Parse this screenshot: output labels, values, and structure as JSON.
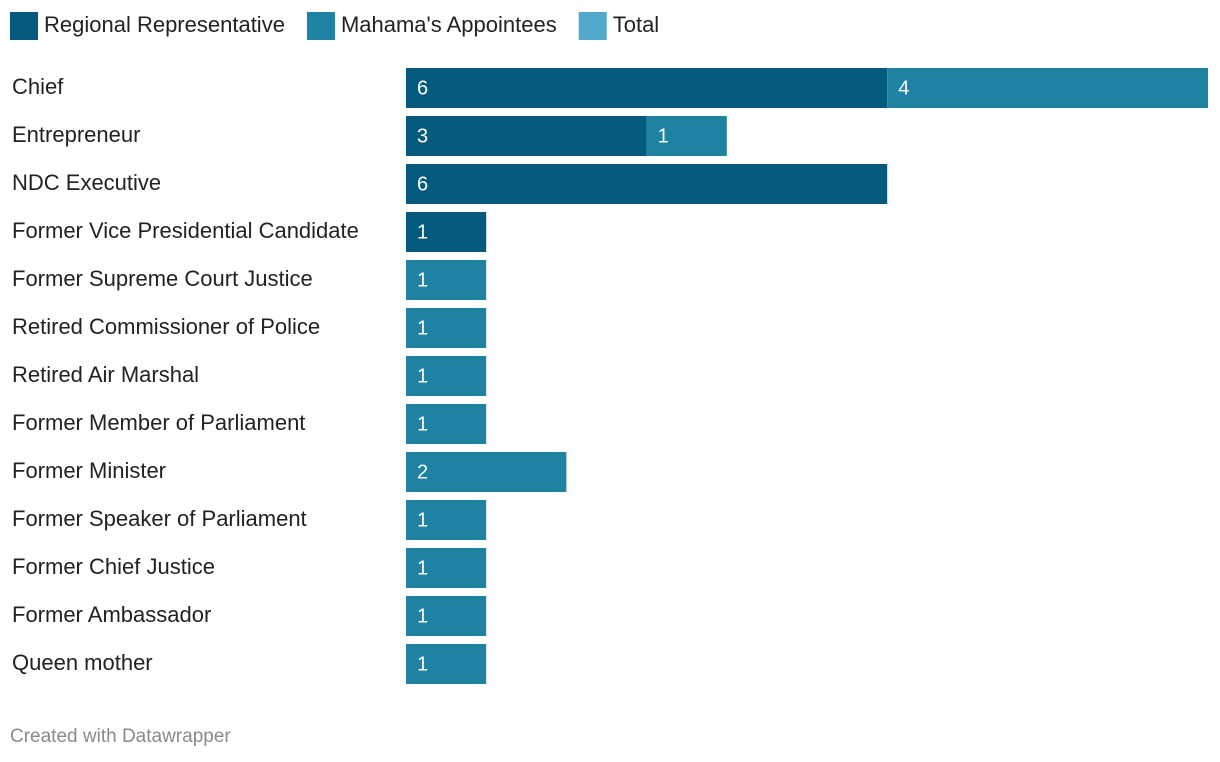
{
  "chart_data": {
    "type": "stacked-bar",
    "orientation": "horizontal",
    "categories": [
      "Chief",
      "Entrepreneur",
      "NDC Executive",
      "Former Vice Presidential Candidate",
      "Former Supreme Court Justice",
      "Retired Commissioner of Police",
      "Retired Air Marshal",
      "Former Member of Parliament",
      "Former Minister",
      "Former Speaker of Parliament",
      "Former Chief Justice",
      "Former Ambassador",
      "Queen mother"
    ],
    "series": [
      {
        "name": "Regional Representative",
        "color": "#045a7d",
        "values": [
          6,
          3,
          6,
          1,
          null,
          null,
          null,
          null,
          null,
          null,
          null,
          null,
          null
        ]
      },
      {
        "name": "Mahama's Appointees",
        "color": "#1f82a3",
        "values": [
          4,
          1,
          null,
          null,
          1,
          1,
          1,
          1,
          2,
          1,
          1,
          1,
          1
        ]
      },
      {
        "name": "Total",
        "color": "#53a9cb",
        "values": [
          null,
          null,
          null,
          null,
          null,
          null,
          null,
          null,
          null,
          null,
          null,
          null,
          null
        ]
      }
    ],
    "xlim": [
      0,
      10
    ],
    "source": "Created with Datawrapper"
  }
}
